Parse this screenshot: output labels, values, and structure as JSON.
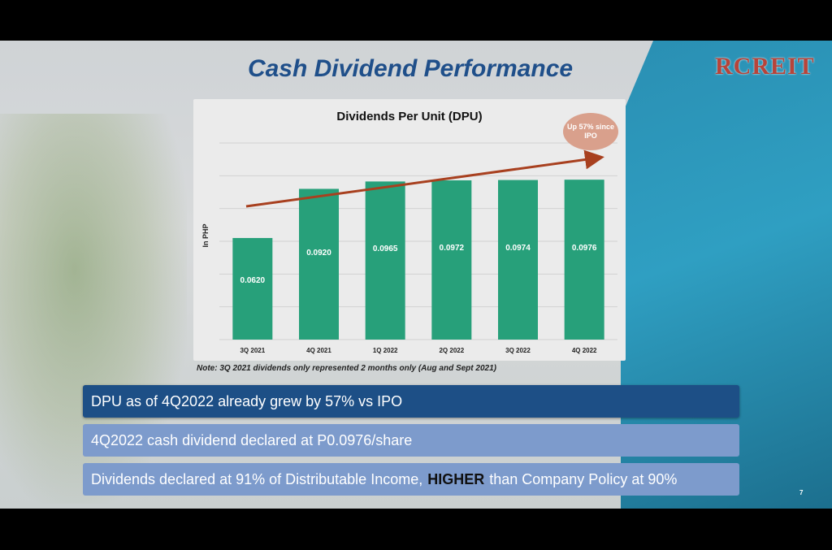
{
  "slide": {
    "title": "Cash Dividend Performance",
    "logo": "RCREIT",
    "note": "Note: 3Q 2021 dividends only represented 2 months only (Aug and Sept 2021)",
    "page_number": "7",
    "bubble": "Up 57% since IPO",
    "bullets": [
      "DPU as of 4Q2022 already grew by 57% vs IPO",
      "4Q2022 cash dividend declared at P0.0976/share"
    ],
    "bullet3_pre": "Dividends declared at 91% of Distributable Income,",
    "bullet3_highlight": "HIGHER",
    "bullet3_post": "than Company Policy at 90%"
  },
  "chart_data": {
    "type": "bar",
    "title": "Dividends Per Unit (DPU)",
    "ylabel": "In PHP",
    "xlabel": "",
    "categories": [
      "3Q 2021",
      "4Q 2021",
      "1Q 2022",
      "2Q 2022",
      "3Q 2022",
      "4Q 2022"
    ],
    "values": [
      0.062,
      0.092,
      0.0965,
      0.0972,
      0.0974,
      0.0976
    ],
    "data_labels": [
      "0.0620",
      "0.0920",
      "0.0965",
      "0.0972",
      "0.0974",
      "0.0976"
    ],
    "ylim": [
      0,
      0.12
    ],
    "grid": true,
    "bar_color": "#27a07a",
    "trend_arrow_color": "#a8401f"
  }
}
